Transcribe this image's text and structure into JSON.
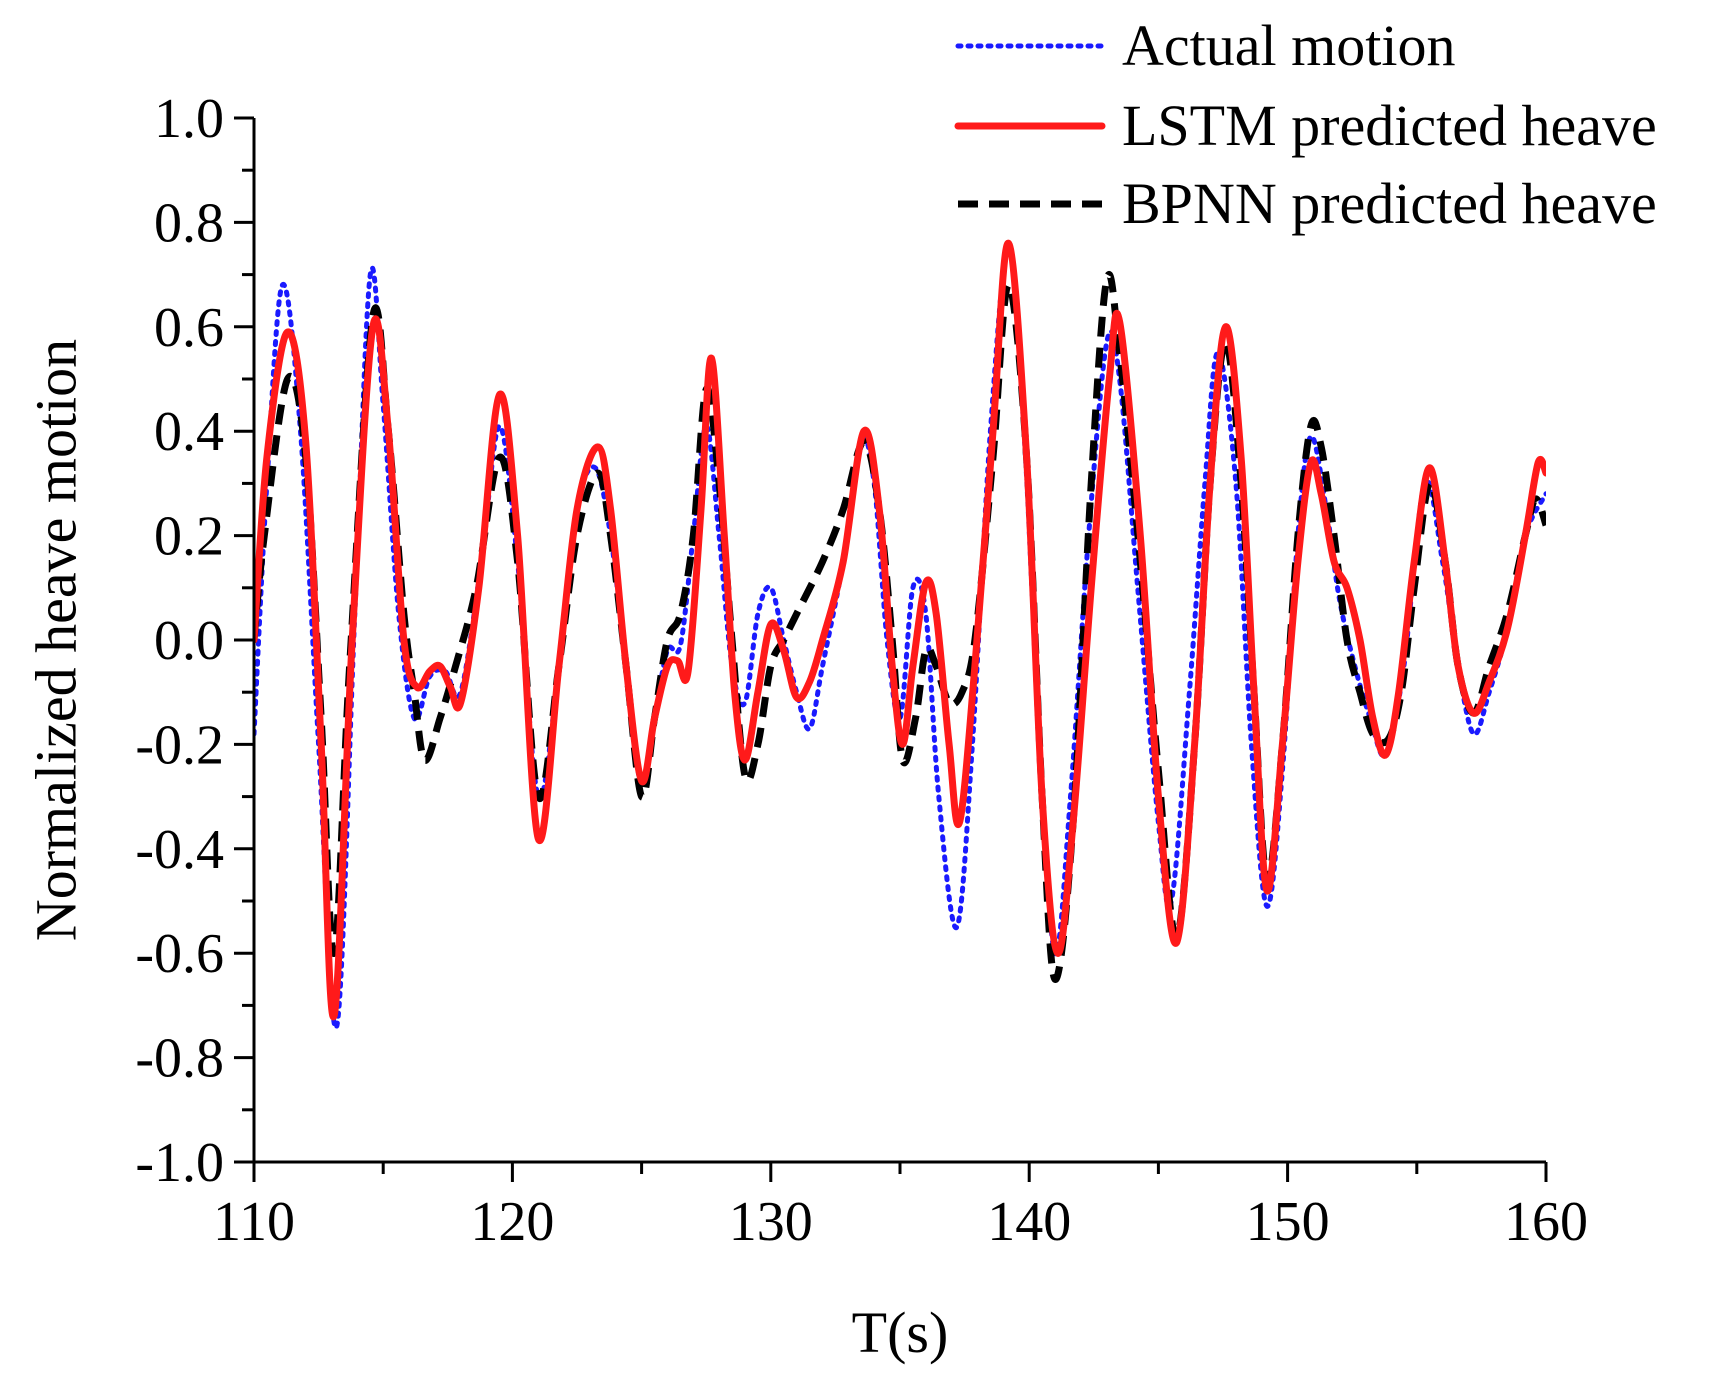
{
  "chart_data": {
    "type": "line",
    "title": "",
    "xlabel": "T(s)",
    "ylabel": "Normalized heave motion",
    "xlim": [
      110,
      160
    ],
    "ylim": [
      -1.0,
      1.0
    ],
    "x_ticks": [
      110,
      120,
      130,
      140,
      150,
      160
    ],
    "x_tick_labels": [
      "110",
      "120",
      "130",
      "140",
      "150",
      "160"
    ],
    "y_ticks": [
      1.0,
      0.8,
      0.6,
      0.4,
      0.2,
      0.0,
      -0.2,
      -0.4,
      -0.6,
      -0.8,
      -1.0
    ],
    "y_tick_labels": [
      "1.0",
      "0.8",
      "0.6",
      "0.4",
      "0.2",
      "0.0",
      "-0.2",
      "-0.4",
      "-0.6",
      "-0.8",
      "-1.0"
    ],
    "grid": false,
    "legend_position": "top-right",
    "series": [
      {
        "name": "Actual motion",
        "color": "#1a1aff",
        "style": "dotted",
        "points": [
          [
            110.0,
            -0.18
          ],
          [
            110.5,
            0.3
          ],
          [
            111.1,
            0.68
          ],
          [
            111.8,
            0.4
          ],
          [
            112.5,
            -0.2
          ],
          [
            113.2,
            -0.74
          ],
          [
            113.9,
            0.05
          ],
          [
            114.5,
            0.7
          ],
          [
            115.0,
            0.45
          ],
          [
            115.6,
            0.05
          ],
          [
            116.2,
            -0.15
          ],
          [
            116.8,
            -0.07
          ],
          [
            117.4,
            -0.06
          ],
          [
            118.0,
            -0.1
          ],
          [
            118.8,
            0.15
          ],
          [
            119.5,
            0.41
          ],
          [
            120.2,
            0.15
          ],
          [
            121.0,
            -0.3
          ],
          [
            121.8,
            -0.05
          ],
          [
            122.5,
            0.25
          ],
          [
            123.2,
            0.33
          ],
          [
            123.8,
            0.2
          ],
          [
            124.4,
            -0.05
          ],
          [
            125.0,
            -0.28
          ],
          [
            125.5,
            -0.15
          ],
          [
            126.0,
            -0.02
          ],
          [
            126.5,
            -0.01
          ],
          [
            127.0,
            0.2
          ],
          [
            127.5,
            0.41
          ],
          [
            128.0,
            0.2
          ],
          [
            128.5,
            -0.05
          ],
          [
            129.0,
            -0.12
          ],
          [
            129.5,
            0.05
          ],
          [
            130.0,
            0.1
          ],
          [
            130.5,
            0.0
          ],
          [
            131.0,
            -0.1
          ],
          [
            131.5,
            -0.17
          ],
          [
            132.0,
            -0.05
          ],
          [
            132.8,
            0.15
          ],
          [
            133.5,
            0.38
          ],
          [
            134.0,
            0.3
          ],
          [
            134.5,
            0.0
          ],
          [
            135.0,
            -0.15
          ],
          [
            135.5,
            0.1
          ],
          [
            136.0,
            0.05
          ],
          [
            136.5,
            -0.3
          ],
          [
            137.2,
            -0.55
          ],
          [
            137.8,
            -0.2
          ],
          [
            138.5,
            0.4
          ],
          [
            139.2,
            0.75
          ],
          [
            139.8,
            0.4
          ],
          [
            140.4,
            -0.2
          ],
          [
            141.0,
            -0.6
          ],
          [
            141.6,
            -0.3
          ],
          [
            142.3,
            0.2
          ],
          [
            143.0,
            0.57
          ],
          [
            143.5,
            0.5
          ],
          [
            144.2,
            0.1
          ],
          [
            145.0,
            -0.35
          ],
          [
            145.5,
            -0.5
          ],
          [
            146.2,
            -0.1
          ],
          [
            146.8,
            0.3
          ],
          [
            147.3,
            0.55
          ],
          [
            148.0,
            0.3
          ],
          [
            148.6,
            -0.2
          ],
          [
            149.2,
            -0.51
          ],
          [
            149.8,
            -0.25
          ],
          [
            150.4,
            0.2
          ],
          [
            150.9,
            0.39
          ],
          [
            151.5,
            0.25
          ],
          [
            152.0,
            0.08
          ],
          [
            152.6,
            -0.05
          ],
          [
            153.2,
            -0.15
          ],
          [
            153.8,
            -0.22
          ],
          [
            154.5,
            -0.05
          ],
          [
            155.3,
            0.3
          ],
          [
            156.0,
            0.15
          ],
          [
            156.6,
            -0.05
          ],
          [
            157.2,
            -0.18
          ],
          [
            157.8,
            -0.1
          ],
          [
            158.5,
            0.02
          ],
          [
            159.2,
            0.2
          ],
          [
            160.0,
            0.28
          ]
        ]
      },
      {
        "name": "LSTM predicted heave",
        "color": "#ff1a1a",
        "style": "solid",
        "points": [
          [
            110.0,
            0.0
          ],
          [
            110.5,
            0.35
          ],
          [
            111.3,
            0.59
          ],
          [
            112.0,
            0.38
          ],
          [
            112.6,
            -0.2
          ],
          [
            113.1,
            -0.72
          ],
          [
            113.8,
            0.0
          ],
          [
            114.6,
            0.6
          ],
          [
            115.2,
            0.4
          ],
          [
            115.8,
            0.0
          ],
          [
            116.3,
            -0.09
          ],
          [
            116.8,
            -0.06
          ],
          [
            117.2,
            -0.05
          ],
          [
            117.6,
            -0.09
          ],
          [
            118.0,
            -0.12
          ],
          [
            118.7,
            0.1
          ],
          [
            119.5,
            0.47
          ],
          [
            120.2,
            0.2
          ],
          [
            121.0,
            -0.38
          ],
          [
            121.8,
            -0.05
          ],
          [
            122.5,
            0.25
          ],
          [
            123.3,
            0.37
          ],
          [
            123.8,
            0.25
          ],
          [
            124.4,
            -0.05
          ],
          [
            125.0,
            -0.27
          ],
          [
            125.5,
            -0.15
          ],
          [
            126.0,
            -0.05
          ],
          [
            126.4,
            -0.04
          ],
          [
            126.8,
            -0.06
          ],
          [
            127.3,
            0.25
          ],
          [
            127.7,
            0.54
          ],
          [
            128.2,
            0.2
          ],
          [
            128.6,
            -0.1
          ],
          [
            129.0,
            -0.23
          ],
          [
            129.5,
            -0.1
          ],
          [
            130.0,
            0.03
          ],
          [
            130.5,
            -0.02
          ],
          [
            131.0,
            -0.11
          ],
          [
            131.5,
            -0.08
          ],
          [
            132.0,
            0.0
          ],
          [
            132.8,
            0.15
          ],
          [
            133.6,
            0.4
          ],
          [
            134.2,
            0.25
          ],
          [
            134.7,
            -0.05
          ],
          [
            135.1,
            -0.2
          ],
          [
            135.5,
            -0.05
          ],
          [
            136.0,
            0.11
          ],
          [
            136.4,
            0.05
          ],
          [
            136.9,
            -0.2
          ],
          [
            137.3,
            -0.35
          ],
          [
            137.9,
            -0.05
          ],
          [
            138.6,
            0.4
          ],
          [
            139.2,
            0.76
          ],
          [
            139.9,
            0.35
          ],
          [
            140.5,
            -0.3
          ],
          [
            141.1,
            -0.6
          ],
          [
            141.7,
            -0.35
          ],
          [
            142.4,
            0.1
          ],
          [
            143.1,
            0.5
          ],
          [
            143.5,
            0.61
          ],
          [
            144.3,
            0.2
          ],
          [
            145.0,
            -0.3
          ],
          [
            145.7,
            -0.58
          ],
          [
            146.4,
            -0.2
          ],
          [
            147.0,
            0.3
          ],
          [
            147.6,
            0.6
          ],
          [
            148.2,
            0.35
          ],
          [
            148.7,
            -0.1
          ],
          [
            149.2,
            -0.48
          ],
          [
            149.8,
            -0.2
          ],
          [
            150.4,
            0.15
          ],
          [
            150.9,
            0.34
          ],
          [
            151.3,
            0.28
          ],
          [
            151.8,
            0.15
          ],
          [
            152.3,
            0.1
          ],
          [
            152.8,
            0.0
          ],
          [
            153.3,
            -0.15
          ],
          [
            153.8,
            -0.22
          ],
          [
            154.3,
            -0.1
          ],
          [
            154.9,
            0.15
          ],
          [
            155.5,
            0.33
          ],
          [
            156.1,
            0.15
          ],
          [
            156.6,
            -0.05
          ],
          [
            157.2,
            -0.14
          ],
          [
            157.8,
            -0.08
          ],
          [
            158.5,
            0.02
          ],
          [
            159.2,
            0.2
          ],
          [
            159.7,
            0.34
          ],
          [
            160.0,
            0.32
          ]
        ]
      },
      {
        "name": "BPNN predicted heave",
        "color": "#000000",
        "style": "dashed",
        "points": [
          [
            110.0,
            0.0
          ],
          [
            110.4,
            0.2
          ],
          [
            111.3,
            0.5
          ],
          [
            112.0,
            0.35
          ],
          [
            112.6,
            -0.15
          ],
          [
            113.1,
            -0.6
          ],
          [
            113.7,
            -0.05
          ],
          [
            114.6,
            0.62
          ],
          [
            115.2,
            0.4
          ],
          [
            115.8,
            0.05
          ],
          [
            116.2,
            -0.1
          ],
          [
            116.6,
            -0.23
          ],
          [
            117.2,
            -0.15
          ],
          [
            117.8,
            -0.05
          ],
          [
            118.6,
            0.1
          ],
          [
            119.5,
            0.35
          ],
          [
            120.2,
            0.15
          ],
          [
            121.0,
            -0.3
          ],
          [
            121.8,
            -0.05
          ],
          [
            122.5,
            0.2
          ],
          [
            123.3,
            0.32
          ],
          [
            123.8,
            0.2
          ],
          [
            124.4,
            -0.05
          ],
          [
            125.0,
            -0.3
          ],
          [
            125.5,
            -0.15
          ],
          [
            126.0,
            0.0
          ],
          [
            126.5,
            0.05
          ],
          [
            127.0,
            0.2
          ],
          [
            127.5,
            0.48
          ],
          [
            128.0,
            0.3
          ],
          [
            128.5,
            0.0
          ],
          [
            129.0,
            -0.26
          ],
          [
            129.5,
            -0.2
          ],
          [
            130.0,
            -0.05
          ],
          [
            130.5,
            0.0
          ],
          [
            131.0,
            0.05
          ],
          [
            132.0,
            0.15
          ],
          [
            132.8,
            0.25
          ],
          [
            133.6,
            0.38
          ],
          [
            134.2,
            0.25
          ],
          [
            134.7,
            0.0
          ],
          [
            135.1,
            -0.23
          ],
          [
            135.6,
            -0.15
          ],
          [
            136.0,
            -0.02
          ],
          [
            136.4,
            -0.05
          ],
          [
            136.9,
            -0.12
          ],
          [
            137.4,
            -0.1
          ],
          [
            137.9,
            0.0
          ],
          [
            138.6,
            0.35
          ],
          [
            139.2,
            0.68
          ],
          [
            139.9,
            0.35
          ],
          [
            140.5,
            -0.3
          ],
          [
            141.0,
            -0.65
          ],
          [
            141.7,
            -0.35
          ],
          [
            142.4,
            0.3
          ],
          [
            143.0,
            0.69
          ],
          [
            143.5,
            0.55
          ],
          [
            144.3,
            0.15
          ],
          [
            145.0,
            -0.25
          ],
          [
            145.7,
            -0.57
          ],
          [
            146.4,
            -0.2
          ],
          [
            147.0,
            0.3
          ],
          [
            147.6,
            0.57
          ],
          [
            148.2,
            0.3
          ],
          [
            148.7,
            -0.1
          ],
          [
            149.2,
            -0.46
          ],
          [
            149.8,
            -0.2
          ],
          [
            150.4,
            0.2
          ],
          [
            150.9,
            0.41
          ],
          [
            151.3,
            0.37
          ],
          [
            151.8,
            0.2
          ],
          [
            152.3,
            0.0
          ],
          [
            152.8,
            -0.1
          ],
          [
            153.3,
            -0.18
          ],
          [
            153.9,
            -0.19
          ],
          [
            154.4,
            -0.1
          ],
          [
            154.9,
            0.1
          ],
          [
            155.5,
            0.3
          ],
          [
            156.1,
            0.15
          ],
          [
            156.6,
            -0.05
          ],
          [
            157.2,
            -0.14
          ],
          [
            157.8,
            -0.05
          ],
          [
            158.5,
            0.05
          ],
          [
            159.2,
            0.2
          ],
          [
            159.6,
            0.27
          ],
          [
            160.0,
            0.22
          ]
        ]
      }
    ]
  }
}
